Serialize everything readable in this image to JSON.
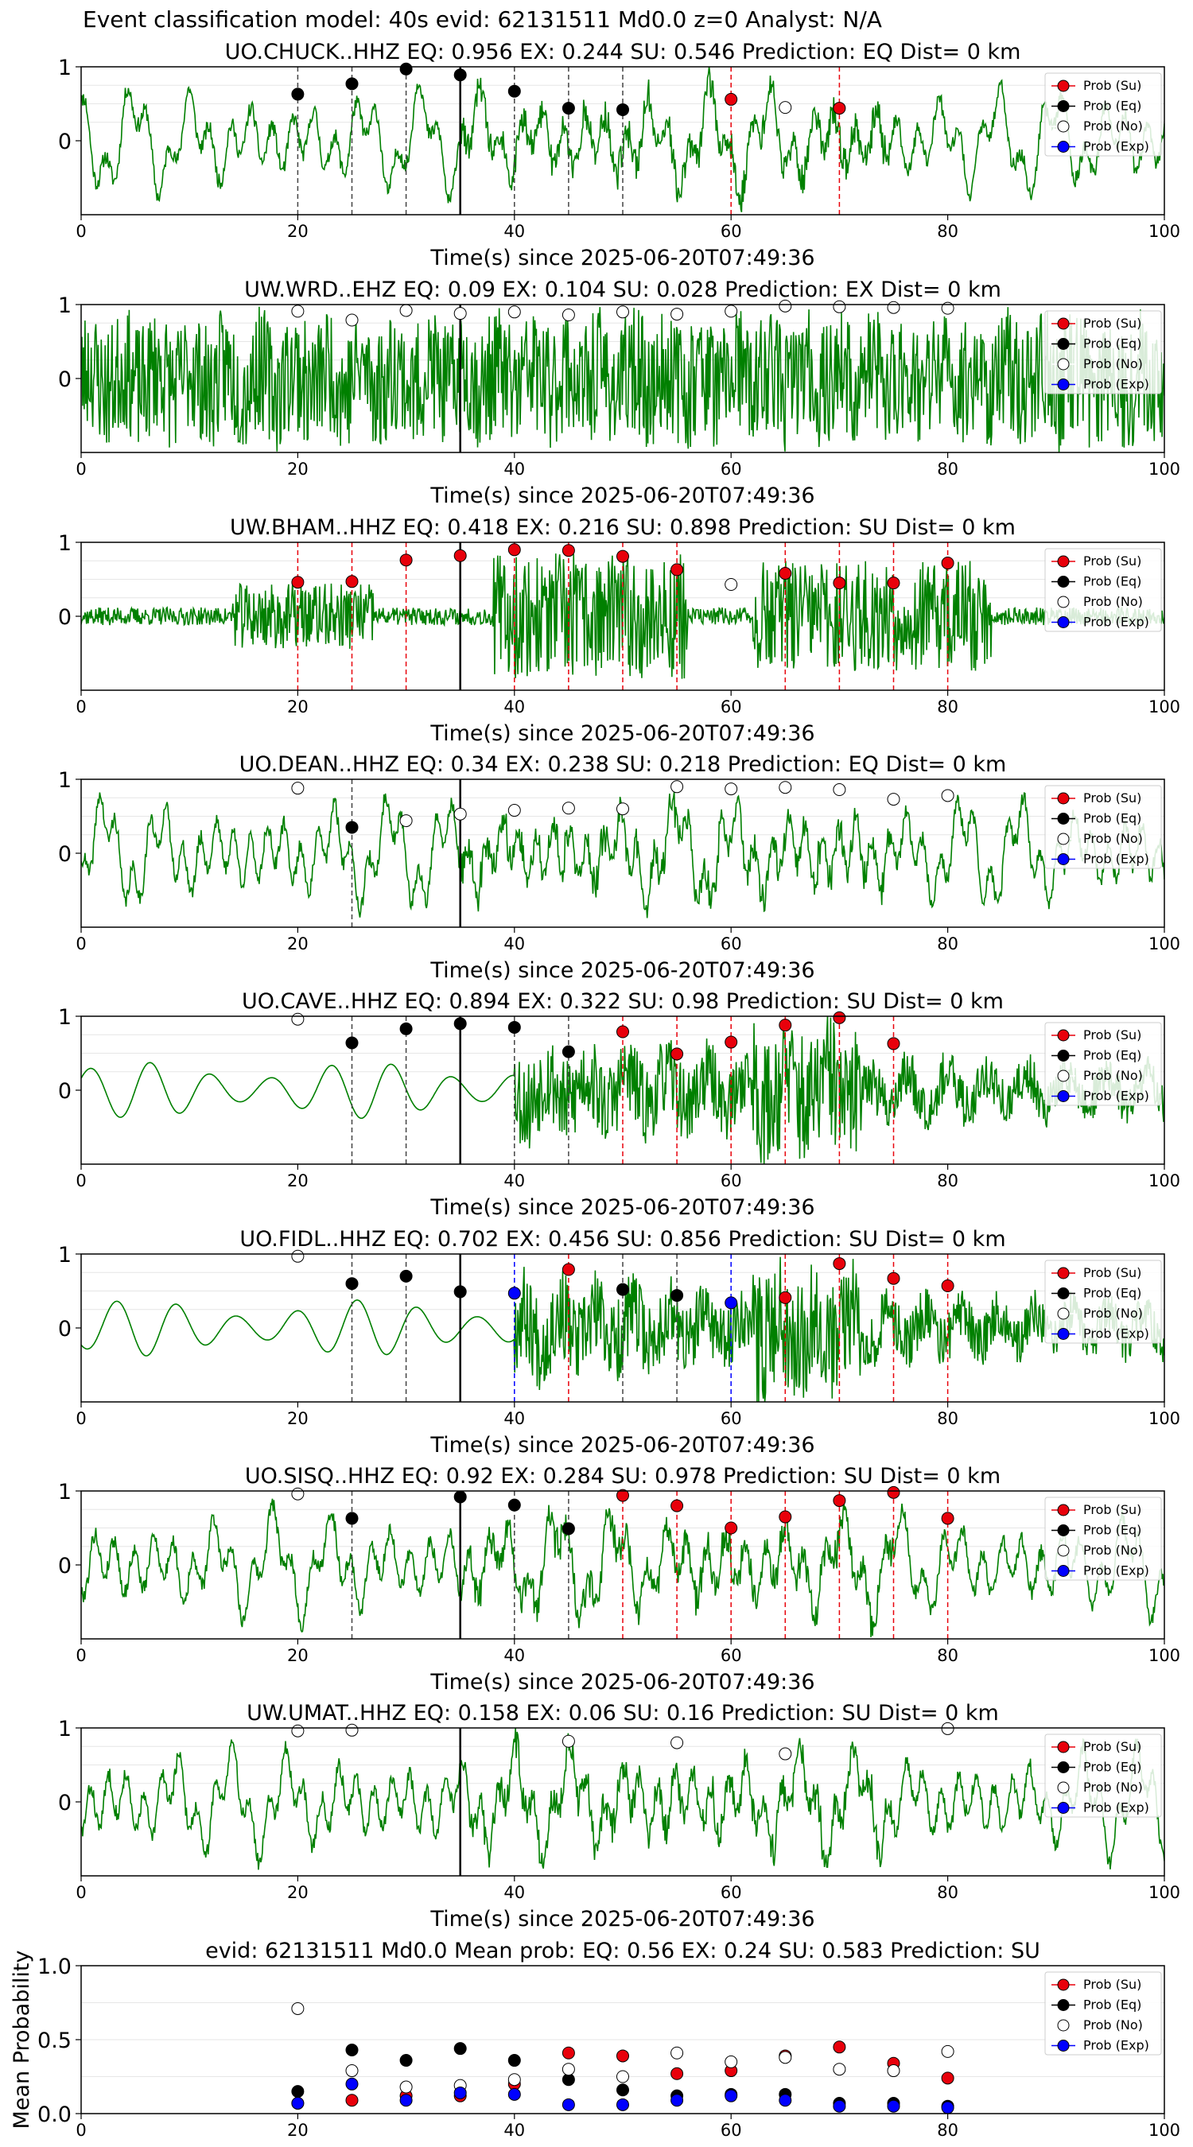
{
  "figure_title": "Event classification model: 40s evid: 62131511 Md0.0 z=0 Analyst: N/A",
  "legend": [
    {
      "label": "Prob (Su)",
      "color": "#e8000b",
      "key": "su"
    },
    {
      "label": "Prob (Eq)",
      "color": "#000000",
      "key": "eq"
    },
    {
      "label": "Prob (No)",
      "color": "#ffffff",
      "key": "no"
    },
    {
      "label": "Prob (Exp)",
      "color": "#0000ff",
      "key": "exp"
    }
  ],
  "colors": {
    "waveform": "#008000",
    "su": "#e8000b",
    "eq": "#000000",
    "exp": "#0000ff",
    "no_fill": "#ffffff",
    "arrival_line": "#000000"
  },
  "chart_data": [
    {
      "type": "scatter",
      "title": "UO.CHUCK..HHZ   EQ: 0.956  EX: 0.244  SU: 0.546   Prediction: EQ    Dist= 0 km",
      "xlabel": "Time(s) since 2025-06-20T07:49:36",
      "ylabel": "",
      "xlim": [
        0,
        100
      ],
      "ylim": [
        -1,
        1
      ],
      "xticks": [
        0,
        20,
        40,
        60,
        80,
        100
      ],
      "yticks": [
        0,
        1
      ],
      "arrival_time": 35,
      "waveform": "seismogram",
      "points": [
        {
          "x": 20,
          "y": 0.63,
          "cls": "eq"
        },
        {
          "x": 25,
          "y": 0.77,
          "cls": "eq"
        },
        {
          "x": 30,
          "y": 0.97,
          "cls": "eq"
        },
        {
          "x": 35,
          "y": 0.89,
          "cls": "eq"
        },
        {
          "x": 40,
          "y": 0.67,
          "cls": "eq"
        },
        {
          "x": 45,
          "y": 0.44,
          "cls": "eq"
        },
        {
          "x": 50,
          "y": 0.42,
          "cls": "eq"
        },
        {
          "x": 60,
          "y": 0.56,
          "cls": "su"
        },
        {
          "x": 65,
          "y": 0.45,
          "cls": "no"
        },
        {
          "x": 70,
          "y": 0.44,
          "cls": "su"
        }
      ]
    },
    {
      "type": "scatter",
      "title": "UW.WRD..EHZ   EQ: 0.09  EX: 0.104  SU: 0.028   Prediction: EX    Dist= 0 km",
      "xlabel": "Time(s) since 2025-06-20T07:49:36",
      "ylabel": "",
      "xlim": [
        0,
        100
      ],
      "ylim": [
        -1,
        1
      ],
      "xticks": [
        0,
        20,
        40,
        60,
        80,
        100
      ],
      "yticks": [
        0,
        1
      ],
      "arrival_time": 35,
      "waveform": "noise",
      "points": [
        {
          "x": 20,
          "y": 0.91,
          "cls": "no"
        },
        {
          "x": 25,
          "y": 0.79,
          "cls": "no"
        },
        {
          "x": 30,
          "y": 0.92,
          "cls": "no"
        },
        {
          "x": 35,
          "y": 0.88,
          "cls": "no"
        },
        {
          "x": 40,
          "y": 0.9,
          "cls": "no"
        },
        {
          "x": 45,
          "y": 0.86,
          "cls": "no"
        },
        {
          "x": 50,
          "y": 0.9,
          "cls": "no"
        },
        {
          "x": 55,
          "y": 0.87,
          "cls": "no"
        },
        {
          "x": 60,
          "y": 0.91,
          "cls": "no"
        },
        {
          "x": 65,
          "y": 0.98,
          "cls": "no"
        },
        {
          "x": 70,
          "y": 0.97,
          "cls": "no"
        },
        {
          "x": 75,
          "y": 0.96,
          "cls": "no"
        },
        {
          "x": 80,
          "y": 0.95,
          "cls": "no"
        }
      ]
    },
    {
      "type": "scatter",
      "title": "UW.BHAM..HHZ   EQ: 0.418  EX: 0.216  SU: 0.898   Prediction: SU    Dist= 0 km",
      "xlabel": "Time(s) since 2025-06-20T07:49:36",
      "ylabel": "",
      "xlim": [
        0,
        100
      ],
      "ylim": [
        -1,
        1
      ],
      "xticks": [
        0,
        20,
        40,
        60,
        80,
        100
      ],
      "yticks": [
        0,
        1
      ],
      "arrival_time": 35,
      "waveform": "bursts",
      "points": [
        {
          "x": 20,
          "y": 0.46,
          "cls": "su"
        },
        {
          "x": 25,
          "y": 0.47,
          "cls": "su"
        },
        {
          "x": 30,
          "y": 0.76,
          "cls": "su"
        },
        {
          "x": 35,
          "y": 0.82,
          "cls": "su"
        },
        {
          "x": 40,
          "y": 0.9,
          "cls": "su"
        },
        {
          "x": 45,
          "y": 0.89,
          "cls": "su"
        },
        {
          "x": 50,
          "y": 0.81,
          "cls": "su"
        },
        {
          "x": 55,
          "y": 0.63,
          "cls": "su"
        },
        {
          "x": 60,
          "y": 0.43,
          "cls": "no"
        },
        {
          "x": 65,
          "y": 0.58,
          "cls": "su"
        },
        {
          "x": 70,
          "y": 0.45,
          "cls": "su"
        },
        {
          "x": 75,
          "y": 0.45,
          "cls": "su"
        },
        {
          "x": 80,
          "y": 0.72,
          "cls": "su"
        }
      ]
    },
    {
      "type": "scatter",
      "title": "UO.DEAN..HHZ   EQ: 0.34  EX: 0.238  SU: 0.218   Prediction: EQ    Dist= 0 km",
      "xlabel": "Time(s) since 2025-06-20T07:49:36",
      "ylabel": "",
      "xlim": [
        0,
        100
      ],
      "ylim": [
        -1,
        1
      ],
      "xticks": [
        0,
        20,
        40,
        60,
        80,
        100
      ],
      "yticks": [
        0,
        1
      ],
      "arrival_time": 35,
      "waveform": "seismogram",
      "points": [
        {
          "x": 20,
          "y": 0.88,
          "cls": "no"
        },
        {
          "x": 25,
          "y": 0.35,
          "cls": "eq"
        },
        {
          "x": 30,
          "y": 0.44,
          "cls": "no"
        },
        {
          "x": 35,
          "y": 0.53,
          "cls": "no"
        },
        {
          "x": 40,
          "y": 0.58,
          "cls": "no"
        },
        {
          "x": 45,
          "y": 0.61,
          "cls": "no"
        },
        {
          "x": 50,
          "y": 0.6,
          "cls": "no"
        },
        {
          "x": 55,
          "y": 0.9,
          "cls": "no"
        },
        {
          "x": 60,
          "y": 0.87,
          "cls": "no"
        },
        {
          "x": 65,
          "y": 0.89,
          "cls": "no"
        },
        {
          "x": 70,
          "y": 0.86,
          "cls": "no"
        },
        {
          "x": 75,
          "y": 0.73,
          "cls": "no"
        },
        {
          "x": 80,
          "y": 0.78,
          "cls": "no"
        }
      ]
    },
    {
      "type": "scatter",
      "title": "UO.CAVE..HHZ   EQ: 0.894  EX: 0.322  SU: 0.98   Prediction: SU    Dist= 0 km",
      "xlabel": "Time(s) since 2025-06-20T07:49:36",
      "ylabel": "",
      "xlim": [
        0,
        100
      ],
      "ylim": [
        -1,
        1
      ],
      "xticks": [
        0,
        20,
        40,
        60,
        80,
        100
      ],
      "yticks": [
        0,
        1
      ],
      "arrival_time": 35,
      "waveform": "quiet_then_burst",
      "points": [
        {
          "x": 20,
          "y": 0.96,
          "cls": "no"
        },
        {
          "x": 25,
          "y": 0.64,
          "cls": "eq"
        },
        {
          "x": 30,
          "y": 0.83,
          "cls": "eq"
        },
        {
          "x": 35,
          "y": 0.9,
          "cls": "eq"
        },
        {
          "x": 40,
          "y": 0.85,
          "cls": "eq"
        },
        {
          "x": 45,
          "y": 0.52,
          "cls": "eq"
        },
        {
          "x": 50,
          "y": 0.79,
          "cls": "su"
        },
        {
          "x": 55,
          "y": 0.49,
          "cls": "su"
        },
        {
          "x": 60,
          "y": 0.65,
          "cls": "su"
        },
        {
          "x": 65,
          "y": 0.88,
          "cls": "su"
        },
        {
          "x": 70,
          "y": 0.98,
          "cls": "su"
        },
        {
          "x": 75,
          "y": 0.63,
          "cls": "su"
        }
      ]
    },
    {
      "type": "scatter",
      "title": "UO.FIDL..HHZ   EQ: 0.702  EX: 0.456  SU: 0.856   Prediction: SU    Dist= 0 km",
      "xlabel": "Time(s) since 2025-06-20T07:49:36",
      "ylabel": "",
      "xlim": [
        0,
        100
      ],
      "ylim": [
        -1,
        1
      ],
      "xticks": [
        0,
        20,
        40,
        60,
        80,
        100
      ],
      "yticks": [
        0,
        1
      ],
      "arrival_time": 35,
      "waveform": "quiet_then_burst",
      "points": [
        {
          "x": 20,
          "y": 0.97,
          "cls": "no"
        },
        {
          "x": 25,
          "y": 0.6,
          "cls": "eq"
        },
        {
          "x": 30,
          "y": 0.7,
          "cls": "eq"
        },
        {
          "x": 35,
          "y": 0.49,
          "cls": "eq"
        },
        {
          "x": 40,
          "y": 0.47,
          "cls": "exp"
        },
        {
          "x": 45,
          "y": 0.79,
          "cls": "su"
        },
        {
          "x": 50,
          "y": 0.52,
          "cls": "eq"
        },
        {
          "x": 55,
          "y": 0.44,
          "cls": "eq"
        },
        {
          "x": 60,
          "y": 0.34,
          "cls": "exp"
        },
        {
          "x": 65,
          "y": 0.41,
          "cls": "su"
        },
        {
          "x": 70,
          "y": 0.87,
          "cls": "su"
        },
        {
          "x": 75,
          "y": 0.67,
          "cls": "su"
        },
        {
          "x": 80,
          "y": 0.57,
          "cls": "su"
        }
      ]
    },
    {
      "type": "scatter",
      "title": "UO.SISQ..HHZ   EQ: 0.92  EX: 0.284  SU: 0.978   Prediction: SU    Dist= 0 km",
      "xlabel": "Time(s) since 2025-06-20T07:49:36",
      "ylabel": "",
      "xlim": [
        0,
        100
      ],
      "ylim": [
        -1,
        1
      ],
      "xticks": [
        0,
        20,
        40,
        60,
        80,
        100
      ],
      "yticks": [
        0,
        1
      ],
      "arrival_time": 35,
      "waveform": "seismogram",
      "points": [
        {
          "x": 20,
          "y": 0.96,
          "cls": "no"
        },
        {
          "x": 25,
          "y": 0.63,
          "cls": "eq"
        },
        {
          "x": 35,
          "y": 0.92,
          "cls": "eq"
        },
        {
          "x": 40,
          "y": 0.81,
          "cls": "eq"
        },
        {
          "x": 45,
          "y": 0.49,
          "cls": "eq"
        },
        {
          "x": 50,
          "y": 0.94,
          "cls": "su"
        },
        {
          "x": 55,
          "y": 0.8,
          "cls": "su"
        },
        {
          "x": 60,
          "y": 0.5,
          "cls": "su"
        },
        {
          "x": 65,
          "y": 0.65,
          "cls": "su"
        },
        {
          "x": 70,
          "y": 0.87,
          "cls": "su"
        },
        {
          "x": 75,
          "y": 0.98,
          "cls": "su"
        },
        {
          "x": 80,
          "y": 0.63,
          "cls": "su"
        }
      ]
    },
    {
      "type": "scatter",
      "title": "UW.UMAT..HHZ   EQ: 0.158  EX: 0.06  SU: 0.16   Prediction: SU    Dist= 0 km",
      "xlabel": "Time(s) since 2025-06-20T07:49:36",
      "ylabel": "",
      "xlim": [
        0,
        100
      ],
      "ylim": [
        -1,
        1
      ],
      "xticks": [
        0,
        20,
        40,
        60,
        80,
        100
      ],
      "yticks": [
        0,
        1
      ],
      "arrival_time": 35,
      "waveform": "seismogram",
      "points": [
        {
          "x": 20,
          "y": 0.96,
          "cls": "no"
        },
        {
          "x": 25,
          "y": 0.97,
          "cls": "no"
        },
        {
          "x": 45,
          "y": 0.82,
          "cls": "no"
        },
        {
          "x": 55,
          "y": 0.8,
          "cls": "no"
        },
        {
          "x": 65,
          "y": 0.65,
          "cls": "no"
        },
        {
          "x": 80,
          "y": 0.99,
          "cls": "no"
        }
      ]
    },
    {
      "type": "scatter",
      "title": "evid: 62131511  Md0.0   Mean prob:    EQ: 0.56  EX: 0.24  SU: 0.583   Prediction: SU",
      "xlabel": "",
      "ylabel": "Mean Probability",
      "xlim": [
        0,
        100
      ],
      "ylim": [
        0,
        1
      ],
      "xticks": [
        0,
        20,
        40,
        60,
        80,
        100
      ],
      "yticks": [
        0.0,
        0.5,
        1.0
      ],
      "ytick_labels": [
        "0.0",
        "0.5",
        "1.0"
      ],
      "series": [
        {
          "name": "Prob (Su)",
          "cls": "su",
          "x": [
            20,
            25,
            30,
            35,
            40,
            45,
            50,
            55,
            60,
            65,
            70,
            75,
            80
          ],
          "y": [
            0.07,
            0.09,
            0.12,
            0.12,
            0.2,
            0.41,
            0.39,
            0.27,
            0.29,
            0.39,
            0.45,
            0.34,
            0.24
          ]
        },
        {
          "name": "Prob (Eq)",
          "cls": "eq",
          "x": [
            20,
            25,
            30,
            35,
            40,
            45,
            50,
            55,
            60,
            65,
            70,
            75,
            80
          ],
          "y": [
            0.15,
            0.43,
            0.36,
            0.44,
            0.36,
            0.23,
            0.16,
            0.12,
            0.13,
            0.13,
            0.07,
            0.07,
            0.05
          ]
        },
        {
          "name": "Prob (No)",
          "cls": "no",
          "x": [
            20,
            25,
            30,
            35,
            40,
            45,
            50,
            55,
            60,
            65,
            70,
            75,
            80
          ],
          "y": [
            0.71,
            0.29,
            0.18,
            0.19,
            0.23,
            0.3,
            0.25,
            0.41,
            0.35,
            0.38,
            0.3,
            0.29,
            0.42
          ]
        },
        {
          "name": "Prob (Exp)",
          "cls": "exp",
          "x": [
            20,
            25,
            30,
            35,
            40,
            45,
            50,
            55,
            60,
            65,
            70,
            75,
            80
          ],
          "y": [
            0.07,
            0.2,
            0.09,
            0.14,
            0.13,
            0.06,
            0.06,
            0.09,
            0.12,
            0.09,
            0.05,
            0.05,
            0.04
          ]
        }
      ]
    }
  ]
}
